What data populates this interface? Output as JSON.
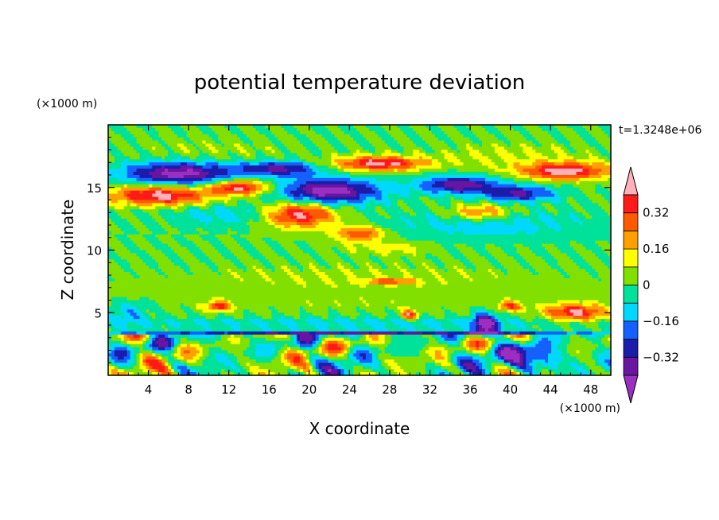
{
  "chart_data": {
    "type": "heatmap",
    "title": "potential temperature deviation",
    "xlabel": "X coordinate",
    "ylabel": "Z coordinate",
    "x_unit": "(×1000 m)",
    "y_unit": "(×1000 m)",
    "time_label": "t=1.3248e+06",
    "xlim": [
      0,
      50
    ],
    "ylim": [
      0,
      20
    ],
    "x_ticks": [
      4,
      8,
      12,
      16,
      20,
      24,
      28,
      32,
      36,
      40,
      44,
      48
    ],
    "y_ticks": [
      5,
      10,
      15
    ],
    "colorbar": {
      "levels": [
        -0.4,
        -0.32,
        -0.24,
        -0.16,
        -0.08,
        0,
        0.08,
        0.16,
        0.24,
        0.32,
        0.4
      ],
      "labeled_levels": [
        -0.32,
        -0.16,
        0,
        0.16,
        0.32
      ],
      "labels": [
        "−0.32",
        "−0.16",
        "0",
        "0.16",
        "0.32"
      ],
      "colors": [
        "#9a2fc2",
        "#6a159f",
        "#1c1caa",
        "#1660ff",
        "#00d8ff",
        "#00e29a",
        "#82e000",
        "#ffff00",
        "#ffa000",
        "#ff5a00",
        "#ff1a1a",
        "#ffb0b8"
      ]
    },
    "features": [
      {
        "cx": 7.0,
        "cz": 16.1,
        "rx": 5.5,
        "rz": 1.0,
        "amp": -0.45
      },
      {
        "cx": 22.0,
        "cz": 14.7,
        "rx": 5.0,
        "rz": 1.0,
        "amp": -0.45
      },
      {
        "cx": 17.0,
        "cz": 16.5,
        "rx": 4.0,
        "rz": 0.6,
        "amp": -0.34
      },
      {
        "cx": 35.0,
        "cz": 15.2,
        "rx": 4.0,
        "rz": 0.7,
        "amp": -0.38
      },
      {
        "cx": 41.0,
        "cz": 14.5,
        "rx": 3.5,
        "rz": 0.6,
        "amp": -0.32
      },
      {
        "cx": 5.0,
        "cz": 14.4,
        "rx": 5.0,
        "rz": 0.8,
        "amp": 0.46
      },
      {
        "cx": 13.0,
        "cz": 15.0,
        "rx": 3.0,
        "rz": 0.6,
        "amp": 0.44
      },
      {
        "cx": 27.0,
        "cz": 16.9,
        "rx": 4.5,
        "rz": 0.6,
        "amp": 0.44
      },
      {
        "cx": 45.5,
        "cz": 16.3,
        "rx": 4.5,
        "rz": 0.7,
        "amp": 0.44
      },
      {
        "cx": 19.0,
        "cz": 12.8,
        "rx": 3.5,
        "rz": 1.0,
        "amp": 0.44
      },
      {
        "cx": 25.0,
        "cz": 11.3,
        "rx": 2.5,
        "rz": 0.6,
        "amp": 0.32
      },
      {
        "cx": 37.0,
        "cz": 13.0,
        "rx": 3.0,
        "rz": 0.6,
        "amp": 0.28
      },
      {
        "cx": 28.0,
        "cz": 10.2,
        "rx": 4.0,
        "rz": 0.5,
        "amp": 0.12
      },
      {
        "cx": 10.0,
        "cz": 17.8,
        "rx": 9.0,
        "rz": 1.2,
        "amp": 0.06
      },
      {
        "cx": 40.0,
        "cz": 17.5,
        "rx": 8.0,
        "rz": 1.2,
        "amp": 0.08
      },
      {
        "cx": 12.0,
        "cz": 12.8,
        "rx": 6.0,
        "rz": 0.8,
        "amp": -0.12
      },
      {
        "cx": 38.0,
        "cz": 12.0,
        "rx": 10.0,
        "rz": 1.2,
        "amp": -0.12
      },
      {
        "cx": 25.0,
        "cz": 7.0,
        "rx": 26.0,
        "rz": 2.2,
        "amp": 0.07
      },
      {
        "cx": 25.0,
        "cz": 4.2,
        "rx": 26.0,
        "rz": 0.5,
        "amp": -0.12
      },
      {
        "cx": 25.0,
        "cz": 3.4,
        "rx": 26.0,
        "rz": 0.15,
        "amp": -0.36
      },
      {
        "cx": 37.5,
        "cz": 4.0,
        "rx": 1.2,
        "rz": 1.0,
        "amp": -0.45
      },
      {
        "cx": 42.0,
        "cz": 1.3,
        "rx": 2.5,
        "rz": 1.0,
        "amp": -0.4
      },
      {
        "cx": 46.5,
        "cz": 5.0,
        "rx": 3.0,
        "rz": 0.7,
        "amp": 0.4
      },
      {
        "cx": 11.0,
        "cz": 5.5,
        "rx": 1.2,
        "rz": 0.4,
        "amp": 0.36
      },
      {
        "cx": 30.0,
        "cz": 4.8,
        "rx": 0.8,
        "rz": 0.4,
        "amp": 0.38
      },
      {
        "cx": 40.0,
        "cz": 5.5,
        "rx": 1.2,
        "rz": 0.4,
        "amp": 0.3
      },
      {
        "cx": 28.0,
        "cz": 7.5,
        "rx": 2.5,
        "rz": 0.2,
        "amp": 0.3
      },
      {
        "cx": 2.0,
        "cz": 5.0,
        "rx": 2.0,
        "rz": 1.0,
        "amp": -0.14
      }
    ],
    "turbulence": {
      "z_max": 3.3,
      "amp": 0.4,
      "kx": 0.9,
      "kz": 1.6
    },
    "time_step": {
      "kx": 2.2,
      "kz": 0.7
    }
  }
}
